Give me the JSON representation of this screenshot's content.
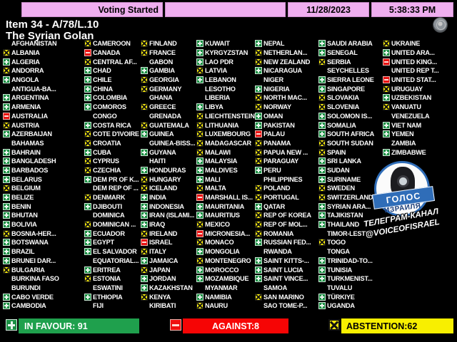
{
  "status_bar": {
    "status": "Voting Started",
    "date": "11/28/2023",
    "time": "5:38:33 PM"
  },
  "header": {
    "item": "Item 34 - A/78/L.10",
    "title": "The Syrian Golan"
  },
  "summary": {
    "in_favour_label": "IN FAVOUR: 91",
    "against_label": "AGAINST:8",
    "abstention_label": "ABSTENTION:62",
    "in_favour": 91,
    "against": 8,
    "abstention": 62
  },
  "icons": {
    "in_favour": "green-square-plus",
    "against": "red-square-minus",
    "abstention": "yellow-square-x",
    "un_emblem": "united-nations-logo"
  },
  "colors": {
    "in_favour": "#1b8f43",
    "against": "#ee0b0b",
    "abstention": "#f4e80b",
    "status_box": "#efaeef",
    "text": "#ffffff"
  },
  "watermark": {
    "badge_line1": "ГОЛОС",
    "badge_line2": "ИЗРАИЛЯ",
    "line1": "ТЕЛЕГРАМ-КАНАЛ",
    "line2": "@VOICEOFISRAEL"
  },
  "columns": [
    {
      "countries": [
        {
          "name": "AFGHANISTAN",
          "vote": ""
        },
        {
          "name": "ALBANIA",
          "vote": "A"
        },
        {
          "name": "ALGERIA",
          "vote": "Y"
        },
        {
          "name": "ANDORRA",
          "vote": "A"
        },
        {
          "name": "ANGOLA",
          "vote": "Y"
        },
        {
          "name": "ANTIGUA-BA...",
          "vote": ""
        },
        {
          "name": "ARGENTINA",
          "vote": "Y"
        },
        {
          "name": "ARMENIA",
          "vote": "Y"
        },
        {
          "name": "AUSTRALIA",
          "vote": "N"
        },
        {
          "name": "AUSTRIA",
          "vote": "A"
        },
        {
          "name": "AZERBAIJAN",
          "vote": "Y"
        },
        {
          "name": "BAHAMAS",
          "vote": ""
        },
        {
          "name": "BAHRAIN",
          "vote": "Y"
        },
        {
          "name": "BANGLADESH",
          "vote": "Y"
        },
        {
          "name": "BARBADOS",
          "vote": "Y"
        },
        {
          "name": "BELARUS",
          "vote": "Y"
        },
        {
          "name": "BELGIUM",
          "vote": "A"
        },
        {
          "name": "BELIZE",
          "vote": "Y"
        },
        {
          "name": "BENIN",
          "vote": "Y"
        },
        {
          "name": "BHUTAN",
          "vote": "Y"
        },
        {
          "name": "BOLIVIA",
          "vote": "Y"
        },
        {
          "name": "BOSNIA-HER...",
          "vote": "A"
        },
        {
          "name": "BOTSWANA",
          "vote": "Y"
        },
        {
          "name": "BRAZIL",
          "vote": "Y"
        },
        {
          "name": "BRUNEI DAR...",
          "vote": "Y"
        },
        {
          "name": "BULGARIA",
          "vote": "A"
        },
        {
          "name": "BURKINA FASO",
          "vote": ""
        },
        {
          "name": "BURUNDI",
          "vote": ""
        },
        {
          "name": "CABO VERDE",
          "vote": "Y"
        },
        {
          "name": "CAMBODIA",
          "vote": "Y"
        }
      ]
    },
    {
      "countries": [
        {
          "name": "CAMEROON",
          "vote": "A"
        },
        {
          "name": "CANADA",
          "vote": "N"
        },
        {
          "name": "CENTRAL AF...",
          "vote": "A"
        },
        {
          "name": "CHAD",
          "vote": "Y"
        },
        {
          "name": "CHILE",
          "vote": "Y"
        },
        {
          "name": "CHINA",
          "vote": "Y"
        },
        {
          "name": "COLOMBIA",
          "vote": "Y"
        },
        {
          "name": "COMOROS",
          "vote": "Y"
        },
        {
          "name": "CONGO",
          "vote": ""
        },
        {
          "name": "COSTA RICA",
          "vote": "Y"
        },
        {
          "name": "COTE D'IVOIRE",
          "vote": "A"
        },
        {
          "name": "CROATIA",
          "vote": "A"
        },
        {
          "name": "CUBA",
          "vote": "Y"
        },
        {
          "name": "CYPRUS",
          "vote": "A"
        },
        {
          "name": "CZECHIA",
          "vote": "A"
        },
        {
          "name": "DEM PR OF K...",
          "vote": "Y"
        },
        {
          "name": "DEM REP OF ...",
          "vote": ""
        },
        {
          "name": "DENMARK",
          "vote": "A"
        },
        {
          "name": "DJIBOUTI",
          "vote": "Y"
        },
        {
          "name": "DOMINICA",
          "vote": ""
        },
        {
          "name": "DOMINICAN ...",
          "vote": "A"
        },
        {
          "name": "ECUADOR",
          "vote": "Y"
        },
        {
          "name": "EGYPT",
          "vote": "Y"
        },
        {
          "name": "EL SALVADOR",
          "vote": "Y"
        },
        {
          "name": "EQUATORIAL...",
          "vote": ""
        },
        {
          "name": "ERITREA",
          "vote": "Y"
        },
        {
          "name": "ESTONIA",
          "vote": "A"
        },
        {
          "name": "ESWATINI",
          "vote": ""
        },
        {
          "name": "ETHIOPIA",
          "vote": "Y"
        },
        {
          "name": "FIJI",
          "vote": ""
        }
      ]
    },
    {
      "countries": [
        {
          "name": "FINLAND",
          "vote": "A"
        },
        {
          "name": "FRANCE",
          "vote": "A"
        },
        {
          "name": "GABON",
          "vote": ""
        },
        {
          "name": "GAMBIA",
          "vote": "Y"
        },
        {
          "name": "GEORGIA",
          "vote": "A"
        },
        {
          "name": "GERMANY",
          "vote": "A"
        },
        {
          "name": "GHANA",
          "vote": ""
        },
        {
          "name": "GREECE",
          "vote": "A"
        },
        {
          "name": "GRENADA",
          "vote": ""
        },
        {
          "name": "GUATEMALA",
          "vote": "A"
        },
        {
          "name": "GUINEA",
          "vote": "Y"
        },
        {
          "name": "GUINEA-BISS...",
          "vote": ""
        },
        {
          "name": "GUYANA",
          "vote": "Y"
        },
        {
          "name": "HAITI",
          "vote": ""
        },
        {
          "name": "HONDURAS",
          "vote": "Y"
        },
        {
          "name": "HUNGARY",
          "vote": "A"
        },
        {
          "name": "ICELAND",
          "vote": "A"
        },
        {
          "name": "INDIA",
          "vote": "Y"
        },
        {
          "name": "INDONESIA",
          "vote": "Y"
        },
        {
          "name": "IRAN (ISLAMI...",
          "vote": "Y"
        },
        {
          "name": "IRAQ",
          "vote": "Y"
        },
        {
          "name": "IRELAND",
          "vote": "A"
        },
        {
          "name": "ISRAEL",
          "vote": "N"
        },
        {
          "name": "ITALY",
          "vote": "A"
        },
        {
          "name": "JAMAICA",
          "vote": "Y"
        },
        {
          "name": "JAPAN",
          "vote": "A"
        },
        {
          "name": "JORDAN",
          "vote": "Y"
        },
        {
          "name": "KAZAKHSTAN",
          "vote": "Y"
        },
        {
          "name": "KENYA",
          "vote": "A"
        },
        {
          "name": "KIRIBATI",
          "vote": ""
        }
      ]
    },
    {
      "countries": [
        {
          "name": "KUWAIT",
          "vote": "Y"
        },
        {
          "name": "KYRGYZSTAN",
          "vote": "Y"
        },
        {
          "name": "LAO PDR",
          "vote": "Y"
        },
        {
          "name": "LATVIA",
          "vote": "A"
        },
        {
          "name": "LEBANON",
          "vote": "Y"
        },
        {
          "name": "LESOTHO",
          "vote": ""
        },
        {
          "name": "LIBERIA",
          "vote": ""
        },
        {
          "name": "LIBYA",
          "vote": "Y"
        },
        {
          "name": "LIECHTENSTEIN",
          "vote": "A"
        },
        {
          "name": "LITHUANIA",
          "vote": "A"
        },
        {
          "name": "LUXEMBOURG",
          "vote": "A"
        },
        {
          "name": "MADAGASCAR",
          "vote": "A"
        },
        {
          "name": "MALAWI",
          "vote": "A"
        },
        {
          "name": "MALAYSIA",
          "vote": "Y"
        },
        {
          "name": "MALDIVES",
          "vote": "Y"
        },
        {
          "name": "MALI",
          "vote": "Y"
        },
        {
          "name": "MALTA",
          "vote": "A"
        },
        {
          "name": "MARSHALL IS...",
          "vote": "N"
        },
        {
          "name": "MAURITANIA",
          "vote": "Y"
        },
        {
          "name": "MAURITIUS",
          "vote": "Y"
        },
        {
          "name": "MEXICO",
          "vote": "A"
        },
        {
          "name": "MICRONESIA...",
          "vote": "N"
        },
        {
          "name": "MONACO",
          "vote": "A"
        },
        {
          "name": "MONGOLIA",
          "vote": "Y"
        },
        {
          "name": "MONTENEGRO",
          "vote": "A"
        },
        {
          "name": "MOROCCO",
          "vote": "Y"
        },
        {
          "name": "MOZAMBIQUE",
          "vote": "Y"
        },
        {
          "name": "MYANMAR",
          "vote": ""
        },
        {
          "name": "NAMIBIA",
          "vote": "Y"
        },
        {
          "name": "NAURU",
          "vote": "A"
        }
      ]
    },
    {
      "countries": [
        {
          "name": "NEPAL",
          "vote": "Y"
        },
        {
          "name": "NETHERLAN...",
          "vote": "A"
        },
        {
          "name": "NEW ZEALAND",
          "vote": "A"
        },
        {
          "name": "NICARAGUA",
          "vote": "Y"
        },
        {
          "name": "NIGER",
          "vote": ""
        },
        {
          "name": "NIGERIA",
          "vote": "Y"
        },
        {
          "name": "NORTH MAC...",
          "vote": "A"
        },
        {
          "name": "NORWAY",
          "vote": "A"
        },
        {
          "name": "OMAN",
          "vote": "Y"
        },
        {
          "name": "PAKISTAN",
          "vote": "Y"
        },
        {
          "name": "PALAU",
          "vote": "N"
        },
        {
          "name": "PANAMA",
          "vote": "A"
        },
        {
          "name": "PAPUA NEW ...",
          "vote": "A"
        },
        {
          "name": "PARAGUAY",
          "vote": "A"
        },
        {
          "name": "PERU",
          "vote": "Y"
        },
        {
          "name": "PHILIPPINES",
          "vote": ""
        },
        {
          "name": "POLAND",
          "vote": "A"
        },
        {
          "name": "PORTUGAL",
          "vote": "A"
        },
        {
          "name": "QATAR",
          "vote": "Y"
        },
        {
          "name": "REP OF KOREA",
          "vote": "A"
        },
        {
          "name": "REP OF MOL...",
          "vote": "A"
        },
        {
          "name": "ROMANIA",
          "vote": "A"
        },
        {
          "name": "RUSSIAN FED...",
          "vote": "Y"
        },
        {
          "name": "RWANDA",
          "vote": ""
        },
        {
          "name": "SAINT KITTS-...",
          "vote": "Y"
        },
        {
          "name": "SAINT LUCIA",
          "vote": "Y"
        },
        {
          "name": "SAINT VINCE...",
          "vote": "Y"
        },
        {
          "name": "SAMOA",
          "vote": ""
        },
        {
          "name": "SAN MARINO",
          "vote": "A"
        },
        {
          "name": "SAO TOME-P...",
          "vote": ""
        }
      ]
    },
    {
      "countries": [
        {
          "name": "SAUDI ARABIA",
          "vote": "Y"
        },
        {
          "name": "SENEGAL",
          "vote": "Y"
        },
        {
          "name": "SERBIA",
          "vote": "A"
        },
        {
          "name": "SEYCHELLES",
          "vote": ""
        },
        {
          "name": "SIERRA LEONE",
          "vote": "Y"
        },
        {
          "name": "SINGAPORE",
          "vote": "Y"
        },
        {
          "name": "SLOVAKIA",
          "vote": "A"
        },
        {
          "name": "SLOVENIA",
          "vote": "A"
        },
        {
          "name": "SOLOMON IS...",
          "vote": "Y"
        },
        {
          "name": "SOMALIA",
          "vote": "Y"
        },
        {
          "name": "SOUTH AFRICA",
          "vote": "Y"
        },
        {
          "name": "SOUTH SUDAN",
          "vote": "A"
        },
        {
          "name": "SPAIN",
          "vote": "A"
        },
        {
          "name": "SRI LANKA",
          "vote": "Y"
        },
        {
          "name": "SUDAN",
          "vote": "Y"
        },
        {
          "name": "SURINAME",
          "vote": "Y"
        },
        {
          "name": "SWEDEN",
          "vote": "A"
        },
        {
          "name": "SWITZERLAND",
          "vote": "A"
        },
        {
          "name": "SYRIAN ARA...",
          "vote": "Y"
        },
        {
          "name": "TAJIKISTAN",
          "vote": "Y"
        },
        {
          "name": "THAILAND",
          "vote": "Y"
        },
        {
          "name": "TIMOR-LESTE",
          "vote": ""
        },
        {
          "name": "TOGO",
          "vote": "A"
        },
        {
          "name": "TONGA",
          "vote": ""
        },
        {
          "name": "TRINIDAD-TO...",
          "vote": "Y"
        },
        {
          "name": "TUNISIA",
          "vote": "Y"
        },
        {
          "name": "TURKMENIST...",
          "vote": "Y"
        },
        {
          "name": "TUVALU",
          "vote": ""
        },
        {
          "name": "TÜRKIYE",
          "vote": "Y"
        },
        {
          "name": "UGANDA",
          "vote": "Y"
        }
      ]
    },
    {
      "countries": [
        {
          "name": "UKRAINE",
          "vote": "A"
        },
        {
          "name": "UNITED ARA...",
          "vote": "Y"
        },
        {
          "name": "UNITED KING...",
          "vote": "N"
        },
        {
          "name": "UNITED REP T...",
          "vote": ""
        },
        {
          "name": "UNITED STAT...",
          "vote": "N"
        },
        {
          "name": "URUGUAY",
          "vote": "A"
        },
        {
          "name": "UZBEKISTAN",
          "vote": "Y"
        },
        {
          "name": "VANUATU",
          "vote": "A"
        },
        {
          "name": "VENEZUELA",
          "vote": ""
        },
        {
          "name": "VIET NAM",
          "vote": "Y"
        },
        {
          "name": "YEMEN",
          "vote": "Y"
        },
        {
          "name": "ZAMBIA",
          "vote": ""
        },
        {
          "name": "ZIMBABWE",
          "vote": "Y"
        }
      ]
    }
  ]
}
